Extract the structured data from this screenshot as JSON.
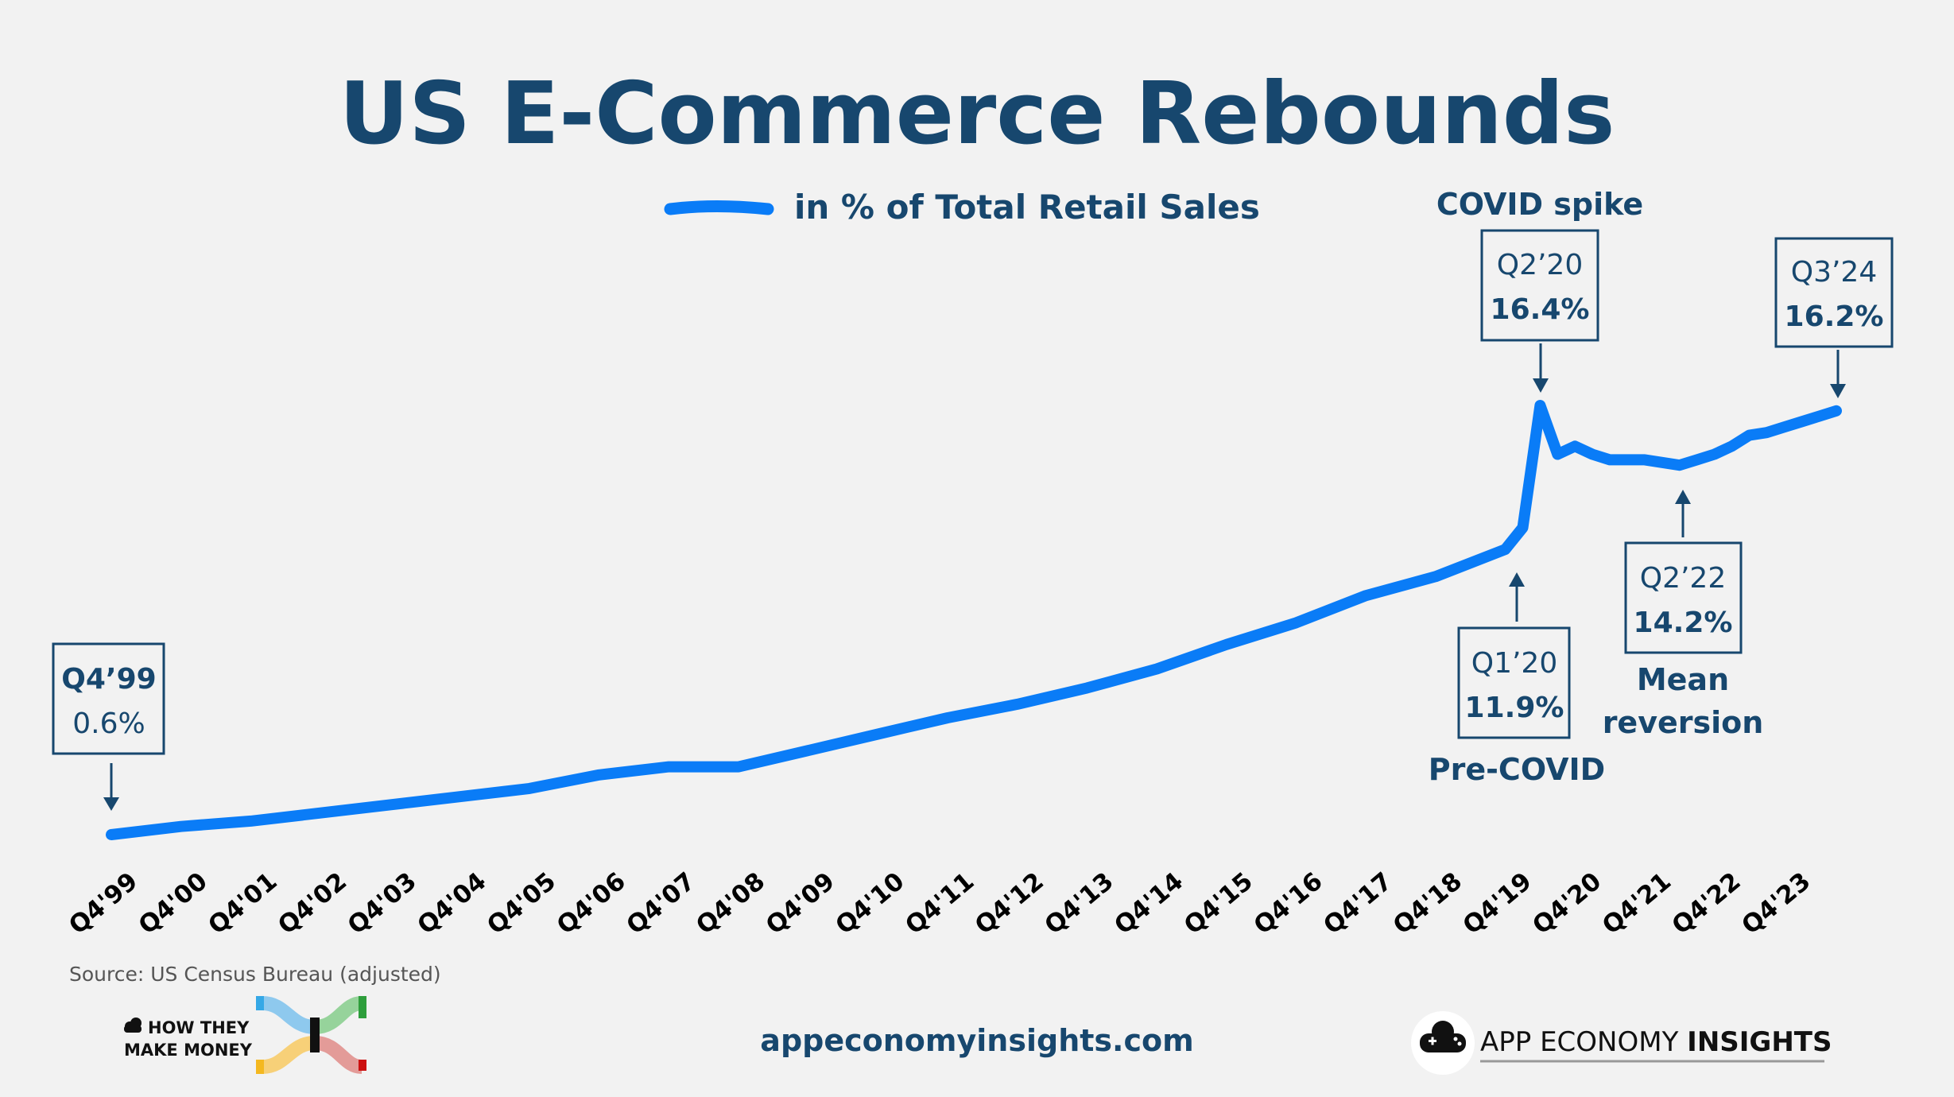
{
  "chart_data": {
    "type": "line",
    "title": "US E-Commerce Rebounds",
    "xlabel": "",
    "ylabel": "",
    "legend": "top-center",
    "grid": false,
    "series": [
      {
        "name": "in % of Total Retail Sales",
        "color": "#0a7cf7",
        "points": [
          {
            "q": "Q4'99",
            "v": 0.6
          },
          {
            "q": "Q4'00",
            "v": 0.9
          },
          {
            "q": "Q4'01",
            "v": 1.1
          },
          {
            "q": "Q4'02",
            "v": 1.4
          },
          {
            "q": "Q4'03",
            "v": 1.7
          },
          {
            "q": "Q4'04",
            "v": 2.0
          },
          {
            "q": "Q4'05",
            "v": 2.3
          },
          {
            "q": "Q4'06",
            "v": 2.8
          },
          {
            "q": "Q4'07",
            "v": 3.1
          },
          {
            "q": "Q4'08",
            "v": 3.1
          },
          {
            "q": "Q4'09",
            "v": 3.7
          },
          {
            "q": "Q4'10",
            "v": 4.3
          },
          {
            "q": "Q4'11",
            "v": 4.9
          },
          {
            "q": "Q4'12",
            "v": 5.4
          },
          {
            "q": "Q4'13",
            "v": 6.0
          },
          {
            "q": "Q4'14",
            "v": 6.7
          },
          {
            "q": "Q4'15",
            "v": 7.6
          },
          {
            "q": "Q4'16",
            "v": 8.4
          },
          {
            "q": "Q4'17",
            "v": 9.4
          },
          {
            "q": "Q4'18",
            "v": 10.1
          },
          {
            "q": "Q4'19",
            "v": 11.1
          },
          {
            "q": "Q1'20",
            "v": 11.9
          },
          {
            "q": "Q2'20",
            "v": 16.4
          },
          {
            "q": "Q3'20",
            "v": 14.6
          },
          {
            "q": "Q4'20",
            "v": 14.9
          },
          {
            "q": "Q1'21",
            "v": 14.6
          },
          {
            "q": "Q2'21",
            "v": 14.4
          },
          {
            "q": "Q3'21",
            "v": 14.4
          },
          {
            "q": "Q4'21",
            "v": 14.4
          },
          {
            "q": "Q1'22",
            "v": 14.3
          },
          {
            "q": "Q2'22",
            "v": 14.2
          },
          {
            "q": "Q3'22",
            "v": 14.4
          },
          {
            "q": "Q4'22",
            "v": 14.6
          },
          {
            "q": "Q1'23",
            "v": 14.9
          },
          {
            "q": "Q2'23",
            "v": 15.3
          },
          {
            "q": "Q3'23",
            "v": 15.4
          },
          {
            "q": "Q4'23",
            "v": 15.6
          },
          {
            "q": "Q1'24",
            "v": 15.8
          },
          {
            "q": "Q2'24",
            "v": 16.0
          },
          {
            "q": "Q3'24",
            "v": 16.2
          }
        ]
      }
    ],
    "x_tick_labels": [
      "Q4'99",
      "Q4'00",
      "Q4'01",
      "Q4'02",
      "Q4'03",
      "Q4'04",
      "Q4'05",
      "Q4'06",
      "Q4'07",
      "Q4'08",
      "Q4'09",
      "Q4'10",
      "Q4'11",
      "Q4'12",
      "Q4'13",
      "Q4'14",
      "Q4'15",
      "Q4'16",
      "Q4'17",
      "Q4'18",
      "Q4'19",
      "Q4'20",
      "Q4'21",
      "Q4'22",
      "Q4'23"
    ],
    "annotations": [
      {
        "id": "q499",
        "label": "Q4’99",
        "value": "0.6%",
        "bold_line": "label"
      },
      {
        "id": "q120",
        "label": "Q1’20",
        "value": "11.9%",
        "bold_line": "value",
        "note": "Pre-COVID"
      },
      {
        "id": "q220",
        "label": "Q2’20",
        "value": "16.4%",
        "bold_line": "value",
        "note": "COVID spike"
      },
      {
        "id": "q222",
        "label": "Q2’22",
        "value": "14.2%",
        "bold_line": "value",
        "note_lines": [
          "Mean",
          "reversion"
        ]
      },
      {
        "id": "q324",
        "label": "Q3’24",
        "value": "16.2%",
        "bold_line": "value"
      }
    ],
    "source": "Source: US Census Bureau (adjusted)"
  },
  "footer": {
    "htm_line1": "HOW THEY",
    "htm_line2": "MAKE MONEY",
    "website": "appeconomyinsights.com",
    "aei_regular": "APP ECONOMY ",
    "aei_bold": "INSIGHTS",
    "colors": {
      "blue": "#8ec9ee",
      "yellow": "#f7d078",
      "green": "#96d39b",
      "red": "#e39b98"
    }
  }
}
